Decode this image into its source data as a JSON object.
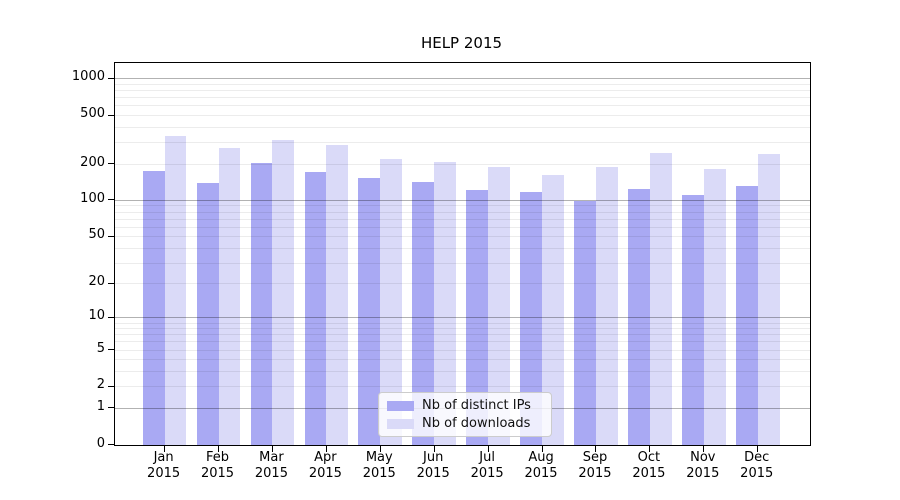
{
  "chart_data": {
    "type": "bar",
    "title": "HELP 2015",
    "categories": [
      "Jan",
      "Feb",
      "Mar",
      "Apr",
      "May",
      "Jun",
      "Jul",
      "Aug",
      "Sep",
      "Oct",
      "Nov",
      "Dec"
    ],
    "category_year": "2015",
    "series": [
      {
        "name": "Nb of distinct IPs",
        "color": "#a9a9f3",
        "values": [
          174,
          137,
          203,
          169,
          153,
          142,
          122,
          117,
          99,
          124,
          111,
          131
        ]
      },
      {
        "name": "Nb of downloads",
        "color": "#dadaf8",
        "values": [
          338,
          267,
          310,
          285,
          218,
          207,
          187,
          162,
          189,
          242,
          180,
          240
        ]
      }
    ],
    "y_ticks": [
      0,
      1,
      2,
      5,
      10,
      20,
      50,
      100,
      200,
      500,
      1000
    ],
    "y_scale": "log10(1+y)",
    "ylim": [
      0,
      1340
    ],
    "grid": "both",
    "legend_position": "lower center",
    "colors": {
      "major_grid": "#b3b3b3",
      "minor_grid": "#ececec",
      "text": "#000000"
    }
  }
}
